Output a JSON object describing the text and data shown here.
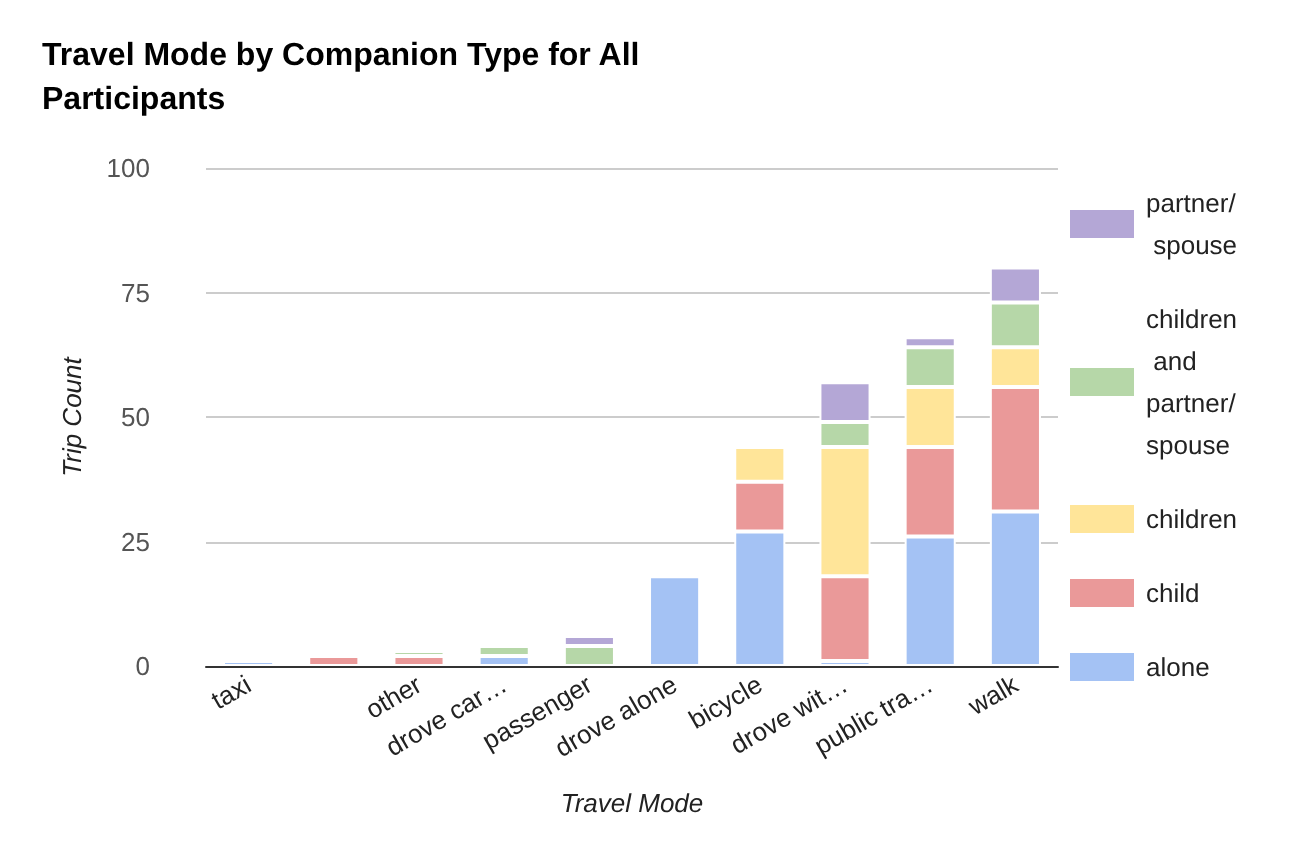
{
  "chart_data": {
    "type": "bar",
    "title": "Travel Mode by Companion Type for All Participants",
    "xlabel": "Travel Mode",
    "ylabel": "Trip Count",
    "categories": [
      "taxi",
      null,
      "other",
      "drove car…",
      "passenger",
      "drove alone",
      "bicycle",
      "drove wit…",
      "public tra…",
      "walk"
    ],
    "stacked": true,
    "series": [
      {
        "name": "alone",
        "color": "#a4c2f4",
        "values": [
          1,
          null,
          null,
          2,
          null,
          18,
          27,
          1,
          26,
          31
        ]
      },
      {
        "name": "child",
        "color": "#ea9999",
        "values": [
          null,
          2,
          2,
          null,
          null,
          null,
          10,
          17,
          18,
          25
        ]
      },
      {
        "name": "children",
        "color": "#ffe599",
        "values": [
          null,
          null,
          null,
          null,
          null,
          null,
          7,
          26,
          12,
          8
        ]
      },
      {
        "name": "children and partner/spouse",
        "color": "#b6d7a8",
        "values": [
          null,
          null,
          1,
          2,
          4,
          null,
          null,
          5,
          8,
          9
        ]
      },
      {
        "name": "partner/ spouse",
        "color": "#b4a7d6",
        "values": [
          null,
          null,
          null,
          null,
          2,
          null,
          null,
          8,
          2,
          7
        ]
      }
    ],
    "ylim": [
      0,
      100
    ],
    "yticks": [
      0,
      25,
      50,
      75,
      100
    ],
    "grid": "y",
    "legend": "right"
  }
}
